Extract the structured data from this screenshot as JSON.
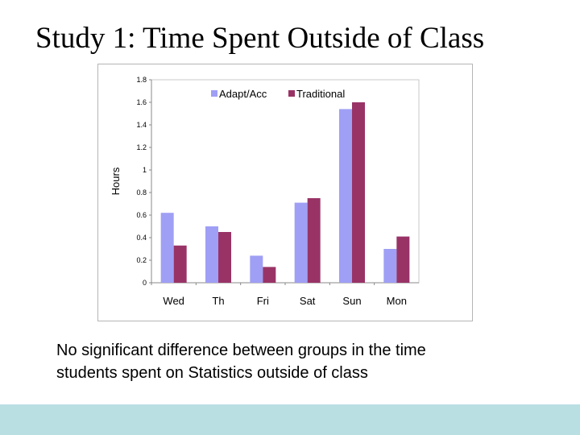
{
  "slide": {
    "title": "Study 1: Time Spent Outside of Class",
    "caption_line1": "No significant difference between groups in the time",
    "caption_line2": "students spent on Statistics outside of class"
  },
  "colors": {
    "adapt": "#9f9ff5",
    "traditional": "#993366",
    "footer": "#b9dfe3"
  },
  "chart_data": {
    "type": "bar",
    "title": "",
    "xlabel": "",
    "ylabel": "Hours",
    "ylim": [
      0,
      1.8
    ],
    "yticks": [
      "0",
      "0.2",
      "0.4",
      "0.6",
      "0.8",
      "1",
      "1.2",
      "1.4",
      "1.6",
      "1.8"
    ],
    "grid": false,
    "legend": "top-center",
    "categories": [
      "Wed",
      "Th",
      "Fri",
      "Sat",
      "Sun",
      "Mon"
    ],
    "series": [
      {
        "name": "Adapt/Acc",
        "color": "#9f9ff5",
        "values": [
          0.62,
          0.5,
          0.24,
          0.71,
          1.54,
          0.3
        ]
      },
      {
        "name": "Traditional",
        "color": "#993366",
        "values": [
          0.33,
          0.45,
          0.14,
          0.75,
          1.6,
          0.41
        ]
      }
    ]
  }
}
